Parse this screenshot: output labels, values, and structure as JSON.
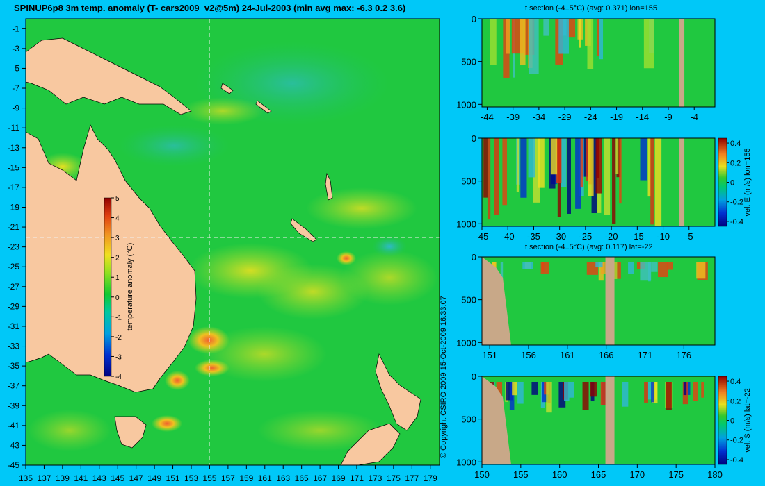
{
  "map": {
    "title": "SPINUP6p8 3m temp. anomaly (T- cars2009_v2@5m) 24-Jul-2003 (min avg max: -6.3 0.2 3.6)",
    "x_ticks": [
      "135",
      "137",
      "139",
      "141",
      "143",
      "145",
      "147",
      "149",
      "151",
      "153",
      "155",
      "157",
      "159",
      "161",
      "163",
      "165",
      "167",
      "169",
      "171",
      "173",
      "175",
      "177",
      "179"
    ],
    "y_ticks": [
      "-1",
      "-3",
      "-5",
      "-7",
      "-9",
      "-11",
      "-13",
      "-15",
      "-17",
      "-19",
      "-21",
      "-23",
      "-25",
      "-27",
      "-29",
      "-31",
      "-33",
      "-35",
      "-37",
      "-39",
      "-41",
      "-43",
      "-45"
    ],
    "colorbar": {
      "label": "temperature anomaly (°C)",
      "ticks": [
        "5",
        "4",
        "3",
        "2",
        "1",
        "0",
        "-1",
        "-2",
        "-3",
        "-4"
      ]
    }
  },
  "panels": [
    {
      "title": "t section (-4..5°C) (avg: 0.371) lon=155",
      "x_ticks": [
        "-44",
        "-39",
        "-34",
        "-29",
        "-24",
        "-19",
        "-14",
        "-9",
        "-4"
      ],
      "y_ticks": [
        "0",
        "500",
        "1000"
      ]
    },
    {
      "title": "",
      "x_ticks": [
        "-45",
        "-40",
        "-35",
        "-30",
        "-25",
        "-20",
        "-15",
        "-10",
        "-5"
      ],
      "y_ticks": [
        "0",
        "500",
        "1000"
      ],
      "colorbar_label": "vel. E (m/s) lon=155",
      "colorbar_ticks": [
        "0.4",
        "0.2",
        "0",
        "-0.2",
        "-0.4"
      ]
    },
    {
      "title": "t section (-4..5°C) (avg: 0.117) lat=-22",
      "x_ticks": [
        "151",
        "156",
        "161",
        "166",
        "171",
        "176"
      ],
      "y_ticks": [
        "0",
        "500",
        "1000"
      ]
    },
    {
      "title": "",
      "x_ticks": [
        "150",
        "155",
        "160",
        "165",
        "170",
        "175",
        "180"
      ],
      "y_ticks": [
        "0",
        "500",
        "1000"
      ],
      "colorbar_label": "vel. S (m/s) lat=-22",
      "colorbar_ticks": [
        "0.4",
        "0.2",
        "0",
        "-0.2",
        "-0.4"
      ]
    }
  ],
  "copyright": "© Copyright CSIRO 2009   15-Oct-2009 16:33:07",
  "chart_data": [
    {
      "type": "heatmap",
      "title": "SPINUP6p8 3m temp. anomaly (T- cars2009_v2@5m) 24-Jul-2003 (min avg max: -6.3 0.2 3.6)",
      "xlim": [
        135,
        180
      ],
      "ylim": [
        -45,
        0
      ],
      "colorbar_range": [
        -4,
        5
      ],
      "colorbar_label": "temperature anomaly (°C)",
      "stats": {
        "min": -6.3,
        "avg": 0.2,
        "max": 3.6
      },
      "section_lines": {
        "lon": 155,
        "lat": -22
      }
    },
    {
      "type": "heatmap",
      "title": "t section (-4..5°C) (avg: 0.371) lon=155",
      "xlim": [
        -45,
        0
      ],
      "ylim": [
        1000,
        0
      ],
      "avg": 0.371
    },
    {
      "type": "heatmap",
      "title": "",
      "xlim": [
        -45,
        0
      ],
      "ylim": [
        1000,
        0
      ],
      "colorbar_range": [
        -0.4,
        0.4
      ],
      "colorbar_label": "vel. E (m/s) lon=155"
    },
    {
      "type": "heatmap",
      "title": "t section (-4..5°C) (avg: 0.117) lat=-22",
      "xlim": [
        150,
        180
      ],
      "ylim": [
        1000,
        0
      ],
      "avg": 0.117
    },
    {
      "type": "heatmap",
      "title": "",
      "xlim": [
        150,
        180
      ],
      "ylim": [
        1000,
        0
      ],
      "colorbar_range": [
        -0.4,
        0.4
      ],
      "colorbar_label": "vel. S (m/s) lat=-22"
    }
  ]
}
